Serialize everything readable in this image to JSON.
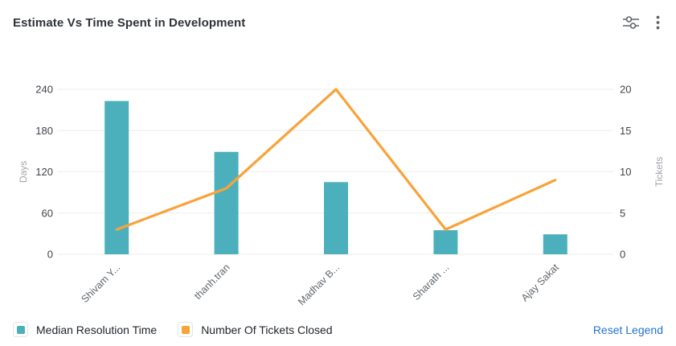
{
  "header": {
    "title": "Estimate Vs Time Spent in Development",
    "icons": [
      {
        "name": "filter-sliders-icon"
      },
      {
        "name": "kebab-menu-icon"
      }
    ]
  },
  "chart_data": {
    "type": "combo",
    "title": "Estimate Vs Time Spent in Development",
    "categories": [
      "Shivam Y...",
      "thanh.tran",
      "Madhav B...",
      "Sharath ...",
      "Ajay Sakat"
    ],
    "series": [
      {
        "name": "Median Resolution Time",
        "type": "bar",
        "axis": "left",
        "color": "#4bb0bb",
        "values": [
          223,
          149,
          105,
          35,
          29
        ]
      },
      {
        "name": "Number Of Tickets Closed",
        "type": "line",
        "axis": "right",
        "color": "#f8a33a",
        "values": [
          3,
          8,
          20,
          3,
          9
        ]
      }
    ],
    "left_axis": {
      "label": "Days",
      "range": [
        0,
        240
      ],
      "ticks": [
        0,
        60,
        120,
        180,
        240
      ]
    },
    "right_axis": {
      "label": "Tickets",
      "range": [
        0,
        20
      ],
      "ticks": [
        0,
        5,
        10,
        15,
        20
      ]
    },
    "grid": true,
    "legend_position": "bottom-left",
    "category_label_rotation": -45
  },
  "legend": {
    "items": [
      {
        "label": "Median Resolution Time",
        "color": "#4bb0bb"
      },
      {
        "label": "Number Of Tickets Closed",
        "color": "#f8a33a"
      }
    ],
    "reset_label": "Reset Legend"
  },
  "colors": {
    "grid_line": "#ececec",
    "tick_label": "#3e4349",
    "category_label": "#61676d",
    "axis_name": "#a1a5aa",
    "icon": "#5f6368",
    "link": "#2273d6"
  }
}
